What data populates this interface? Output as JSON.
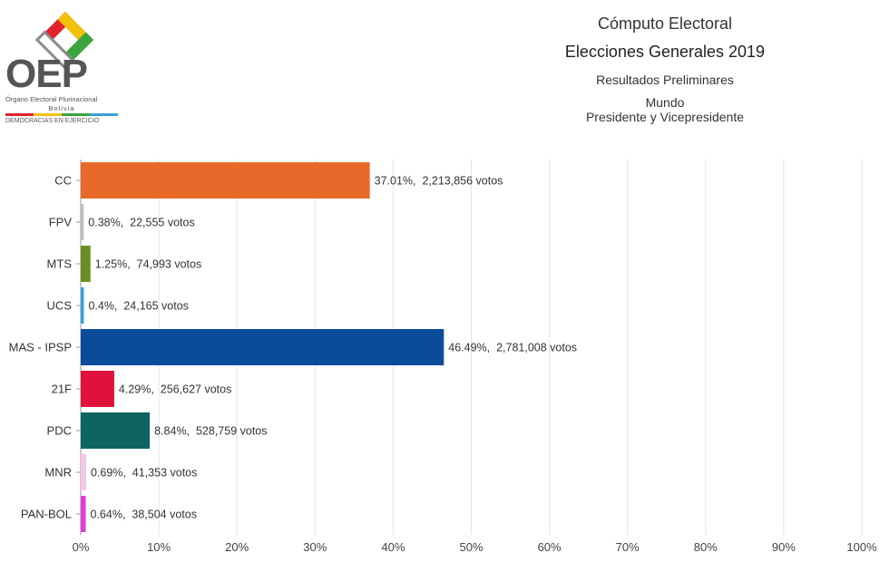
{
  "logo": {
    "abbr": "OEP",
    "line1": "Órgano Electoral Plurinacional",
    "line2": "Bolivia",
    "line3": "DEMOCRACIAS EN EJERCICIO"
  },
  "header": {
    "title": "Cómputo Electoral",
    "subtitle": "Elecciones Generales 2019",
    "results": "Resultados Preliminares",
    "region": "Mundo",
    "office": "Presidente y Vicepresidente"
  },
  "chart_data": {
    "type": "bar",
    "orientation": "horizontal",
    "categories": [
      "CC",
      "FPV",
      "MTS",
      "UCS",
      "MAS - IPSP",
      "21F",
      "PDC",
      "MNR",
      "PAN-BOL"
    ],
    "values": [
      37.01,
      0.38,
      1.25,
      0.4,
      46.49,
      4.29,
      8.84,
      0.69,
      0.64
    ],
    "votes": [
      "2,213,856",
      "22,555",
      "74,993",
      "24,165",
      "2,781,008",
      "256,627",
      "528,759",
      "41,353",
      "38,504"
    ],
    "data_labels": [
      "37.01%,  2,213,856 votos",
      "0.38%,  22,555 votos",
      "1.25%,  74,993 votos",
      "0.4%,  24,165 votos",
      "46.49%,  2,781,008 votos",
      "4.29%,  256,627 votos",
      "8.84%,  528,759 votos",
      "0.69%,  41,353 votos",
      "0.64%,  38,504 votos"
    ],
    "colors": [
      "#e8692a",
      "#bfbfbf",
      "#6b8e23",
      "#3aa0d8",
      "#0a4b9c",
      "#e0123c",
      "#0e6461",
      "#f5c6ec",
      "#e03bd4"
    ],
    "xlim": [
      0,
      100
    ],
    "xticks": [
      "0%",
      "10%",
      "20%",
      "30%",
      "40%",
      "50%",
      "60%",
      "70%",
      "80%",
      "90%",
      "100%"
    ],
    "grid": true,
    "legend": "none"
  }
}
